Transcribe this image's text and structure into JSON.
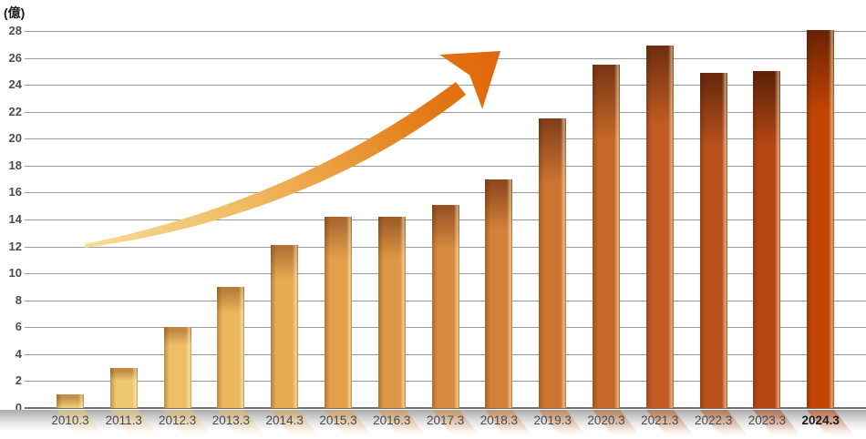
{
  "chart_data": {
    "type": "bar",
    "title": "",
    "unit_label": "(億)",
    "xlabel": "",
    "ylabel": "(億)",
    "categories": [
      "2010.3",
      "2011.3",
      "2012.3",
      "2013.3",
      "2014.3",
      "2015.3",
      "2016.3",
      "2017.3",
      "2018.3",
      "2019.3",
      "2020.3",
      "2021.3",
      "2022.3",
      "2023.3",
      "2024.3"
    ],
    "values": [
      1.0,
      3.0,
      6.0,
      9.0,
      12.1,
      14.2,
      14.2,
      15.1,
      17.0,
      21.5,
      25.5,
      26.9,
      24.9,
      25.0,
      28.1
    ],
    "ylim": [
      0,
      28
    ],
    "yticks": [
      0,
      2,
      4,
      6,
      8,
      10,
      12,
      14,
      16,
      18,
      20,
      22,
      24,
      26,
      28
    ],
    "grid": "horizontal",
    "legend": "none",
    "emphasized_category": "2024.3",
    "bar_styles": [
      {
        "cap": "#c3924a",
        "body": "#f0ca74"
      },
      {
        "cap": "#c28e46",
        "body": "#efc76e"
      },
      {
        "cap": "#bf8840",
        "body": "#edc066"
      },
      {
        "cap": "#b97f38",
        "body": "#eab75c"
      },
      {
        "cap": "#b27434",
        "body": "#e6ac52"
      },
      {
        "cap": "#a9682e",
        "body": "#e2a04b"
      },
      {
        "cap": "#a05e28",
        "body": "#dd9645"
      },
      {
        "cap": "#985424",
        "body": "#d88c3f"
      },
      {
        "cap": "#8e4a1e",
        "body": "#d28139"
      },
      {
        "cap": "#84401a",
        "body": "#cc7431"
      },
      {
        "cap": "#7a3814",
        "body": "#c66829"
      },
      {
        "cap": "#713010",
        "body": "#c05c22"
      },
      {
        "cap": "#68290c",
        "body": "#ba511b"
      },
      {
        "cap": "#5f2309",
        "body": "#b54714"
      },
      {
        "cap": "#6b2405",
        "body": "#c24503"
      }
    ],
    "colors": {
      "grid": "#9a9a9a",
      "baseline": "#6f6f6f",
      "ytick_label": "#4d4d4d",
      "xtick_label": "#4a4a4a",
      "xtick_label_emphasis": "#1c1c1c",
      "floor_band_top": "#ababab",
      "arrow_gradient": [
        "#f7dc96",
        "#f0bc62",
        "#e89230",
        "#e2730f",
        "#e0660e"
      ]
    }
  }
}
